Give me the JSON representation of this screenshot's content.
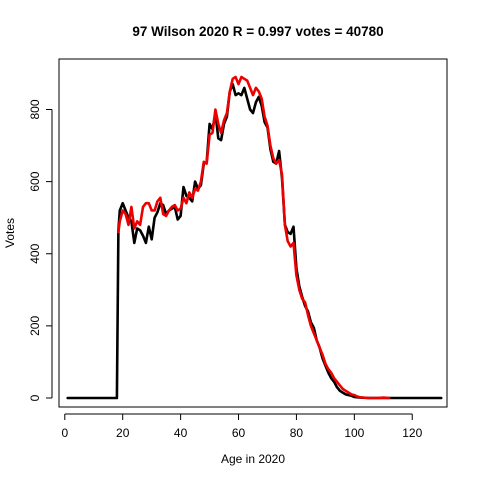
{
  "chart_data": {
    "type": "line",
    "title": "97 Wilson 2020 R = 0.997 votes = 40780",
    "xlabel": "Age in 2020",
    "ylabel": "Votes",
    "xlim": [
      -2,
      132
    ],
    "ylim": [
      -25,
      940
    ],
    "x_ticks": [
      0,
      20,
      40,
      60,
      80,
      100,
      120
    ],
    "y_ticks": [
      0,
      200,
      400,
      600,
      800
    ],
    "grid": false,
    "legend": "none",
    "series": [
      {
        "color": "#000000",
        "points": [
          [
            1,
            0
          ],
          [
            5,
            0
          ],
          [
            10,
            0
          ],
          [
            15,
            0
          ],
          [
            18,
            0
          ],
          [
            18.5,
            465
          ],
          [
            19,
            520
          ],
          [
            20,
            540
          ],
          [
            21,
            520
          ],
          [
            22,
            500
          ],
          [
            23,
            490
          ],
          [
            24,
            430
          ],
          [
            25,
            470
          ],
          [
            26,
            465
          ],
          [
            27,
            450
          ],
          [
            28,
            430
          ],
          [
            29,
            475
          ],
          [
            30,
            440
          ],
          [
            31,
            500
          ],
          [
            32,
            515
          ],
          [
            33,
            540
          ],
          [
            34,
            535
          ],
          [
            35,
            510
          ],
          [
            36,
            520
          ],
          [
            37,
            525
          ],
          [
            38,
            530
          ],
          [
            39,
            495
          ],
          [
            40,
            505
          ],
          [
            41,
            585
          ],
          [
            42,
            560
          ],
          [
            43,
            555
          ],
          [
            44,
            545
          ],
          [
            45,
            600
          ],
          [
            46,
            580
          ],
          [
            47,
            590
          ],
          [
            48,
            650
          ],
          [
            49,
            655
          ],
          [
            50,
            760
          ],
          [
            51,
            745
          ],
          [
            52,
            790
          ],
          [
            53,
            720
          ],
          [
            54,
            715
          ],
          [
            55,
            760
          ],
          [
            56,
            780
          ],
          [
            57,
            850
          ],
          [
            58,
            870
          ],
          [
            59,
            840
          ],
          [
            60,
            845
          ],
          [
            61,
            840
          ],
          [
            62,
            860
          ],
          [
            63,
            830
          ],
          [
            64,
            800
          ],
          [
            65,
            790
          ],
          [
            66,
            820
          ],
          [
            67,
            835
          ],
          [
            68,
            810
          ],
          [
            69,
            765
          ],
          [
            70,
            750
          ],
          [
            71,
            690
          ],
          [
            72,
            655
          ],
          [
            73,
            650
          ],
          [
            74,
            685
          ],
          [
            75,
            610
          ],
          [
            76,
            480
          ],
          [
            77,
            460
          ],
          [
            78,
            455
          ],
          [
            79,
            475
          ],
          [
            80,
            360
          ],
          [
            81,
            310
          ],
          [
            82,
            280
          ],
          [
            83,
            255
          ],
          [
            84,
            240
          ],
          [
            85,
            210
          ],
          [
            86,
            195
          ],
          [
            87,
            160
          ],
          [
            88,
            140
          ],
          [
            89,
            110
          ],
          [
            90,
            90
          ],
          [
            91,
            70
          ],
          [
            92,
            55
          ],
          [
            93,
            45
          ],
          [
            94,
            30
          ],
          [
            95,
            20
          ],
          [
            96,
            15
          ],
          [
            97,
            10
          ],
          [
            98,
            8
          ],
          [
            99,
            6
          ],
          [
            100,
            3
          ],
          [
            102,
            1
          ],
          [
            105,
            0
          ],
          [
            110,
            0
          ],
          [
            115,
            0
          ],
          [
            120,
            0
          ],
          [
            125,
            0
          ],
          [
            130,
            0
          ]
        ]
      },
      {
        "color": "#ee0000",
        "points": [
          [
            18.5,
            460
          ],
          [
            19,
            490
          ],
          [
            20,
            520
          ],
          [
            21,
            510
          ],
          [
            22,
            480
          ],
          [
            23,
            530
          ],
          [
            24,
            470
          ],
          [
            25,
            490
          ],
          [
            26,
            480
          ],
          [
            27,
            530
          ],
          [
            28,
            540
          ],
          [
            29,
            540
          ],
          [
            30,
            520
          ],
          [
            31,
            520
          ],
          [
            32,
            545
          ],
          [
            33,
            555
          ],
          [
            34,
            510
          ],
          [
            35,
            505
          ],
          [
            36,
            520
          ],
          [
            37,
            530
          ],
          [
            38,
            535
          ],
          [
            39,
            520
          ],
          [
            40,
            525
          ],
          [
            41,
            555
          ],
          [
            42,
            540
          ],
          [
            43,
            570
          ],
          [
            44,
            555
          ],
          [
            45,
            580
          ],
          [
            46,
            575
          ],
          [
            47,
            600
          ],
          [
            48,
            655
          ],
          [
            49,
            650
          ],
          [
            50,
            730
          ],
          [
            51,
            735
          ],
          [
            52,
            800
          ],
          [
            53,
            760
          ],
          [
            54,
            735
          ],
          [
            55,
            770
          ],
          [
            56,
            790
          ],
          [
            57,
            850
          ],
          [
            58,
            885
          ],
          [
            59,
            890
          ],
          [
            60,
            870
          ],
          [
            61,
            890
          ],
          [
            62,
            885
          ],
          [
            63,
            880
          ],
          [
            64,
            860
          ],
          [
            65,
            840
          ],
          [
            66,
            860
          ],
          [
            67,
            850
          ],
          [
            68,
            830
          ],
          [
            69,
            780
          ],
          [
            70,
            755
          ],
          [
            71,
            700
          ],
          [
            72,
            665
          ],
          [
            73,
            650
          ],
          [
            74,
            660
          ],
          [
            75,
            620
          ],
          [
            76,
            480
          ],
          [
            77,
            435
          ],
          [
            78,
            420
          ],
          [
            79,
            430
          ],
          [
            80,
            340
          ],
          [
            81,
            300
          ],
          [
            82,
            275
          ],
          [
            83,
            265
          ],
          [
            84,
            230
          ],
          [
            85,
            200
          ],
          [
            86,
            180
          ],
          [
            87,
            160
          ],
          [
            88,
            140
          ],
          [
            89,
            120
          ],
          [
            90,
            95
          ],
          [
            91,
            80
          ],
          [
            92,
            70
          ],
          [
            93,
            55
          ],
          [
            94,
            45
          ],
          [
            95,
            35
          ],
          [
            96,
            25
          ],
          [
            97,
            20
          ],
          [
            98,
            15
          ],
          [
            99,
            10
          ],
          [
            100,
            8
          ],
          [
            101,
            4
          ],
          [
            102,
            2
          ],
          [
            103,
            1
          ],
          [
            105,
            0
          ],
          [
            108,
            0
          ],
          [
            110,
            1
          ],
          [
            112,
            0
          ]
        ]
      }
    ]
  }
}
